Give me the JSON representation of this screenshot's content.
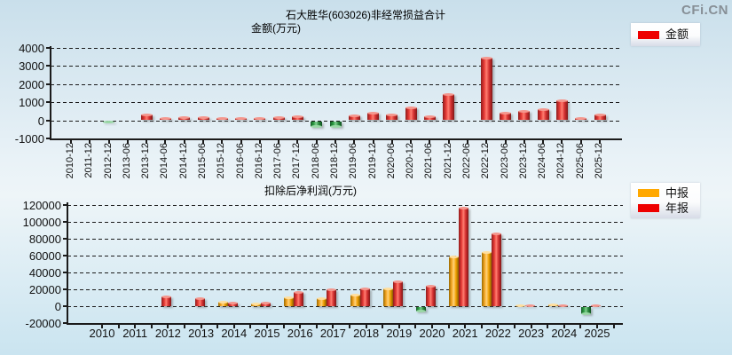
{
  "logo_text": "CFi.CN",
  "colors": {
    "bar_red": "#e41b17",
    "bar_yellow": "#ffa800",
    "bar_negative_green": "#2f9e44",
    "legend_red": "#ee0000",
    "legend_yellow": "#ffa800",
    "axis_black": "#1b1b1b"
  },
  "chart_data": [
    {
      "type": "bar",
      "title": "石大胜华(603026)非经常损益合计",
      "subtitle": "金额(万元)",
      "categories": [
        "2010-12",
        "2011-12",
        "2012-12",
        "2013-06",
        "2013-12",
        "2014-06",
        "2014-12",
        "2015-06",
        "2015-12",
        "2016-06",
        "2016-12",
        "2017-06",
        "2017-12",
        "2018-06",
        "2018-12",
        "2019-06",
        "2019-12",
        "2020-06",
        "2020-12",
        "2021-06",
        "2021-12",
        "2022-06",
        "2022-12",
        "2023-06",
        "2023-12",
        "2024-06",
        "2024-12",
        "2025-06",
        "2025-12"
      ],
      "series": [
        {
          "name": "金额",
          "color": "red",
          "values": [
            null,
            null,
            -60,
            null,
            330,
            120,
            170,
            150,
            130,
            130,
            120,
            160,
            220,
            -300,
            -300,
            280,
            400,
            330,
            690,
            200,
            1440,
            null,
            3450,
            430,
            520,
            620,
            1120,
            110,
            300
          ]
        }
      ],
      "ylim": [
        -1000,
        4000
      ],
      "yticks": [
        4000,
        3000,
        2000,
        1000,
        0,
        -1000
      ],
      "grid": "dashed",
      "legend_position": "top-right",
      "negative_bars_drawn": "green"
    },
    {
      "type": "bar",
      "title": "扣除后净利润(万元)",
      "categories": [
        "2010",
        "2011",
        "2012",
        "2013",
        "2014",
        "2015",
        "2016",
        "2017",
        "2018",
        "2019",
        "2020",
        "2021",
        "2022",
        "2023",
        "2024",
        "2025"
      ],
      "series": [
        {
          "name": "中报",
          "color": "yellow",
          "values": [
            null,
            null,
            null,
            null,
            5700,
            2800,
            10800,
            9100,
            13500,
            21000,
            -5600,
            58500,
            63800,
            1200,
            2500,
            -8000
          ]
        },
        {
          "name": "年报",
          "color": "red",
          "values": [
            null,
            null,
            11800,
            9300,
            4300,
            4300,
            17000,
            19800,
            20700,
            29500,
            24300,
            116800,
            86000,
            900,
            900,
            1000
          ]
        }
      ],
      "ylim": [
        -20000,
        120000
      ],
      "yticks": [
        120000,
        100000,
        80000,
        60000,
        40000,
        20000,
        0,
        -20000
      ],
      "grid": "dashed",
      "legend_position": "right",
      "negative_bars_drawn": "green"
    }
  ]
}
